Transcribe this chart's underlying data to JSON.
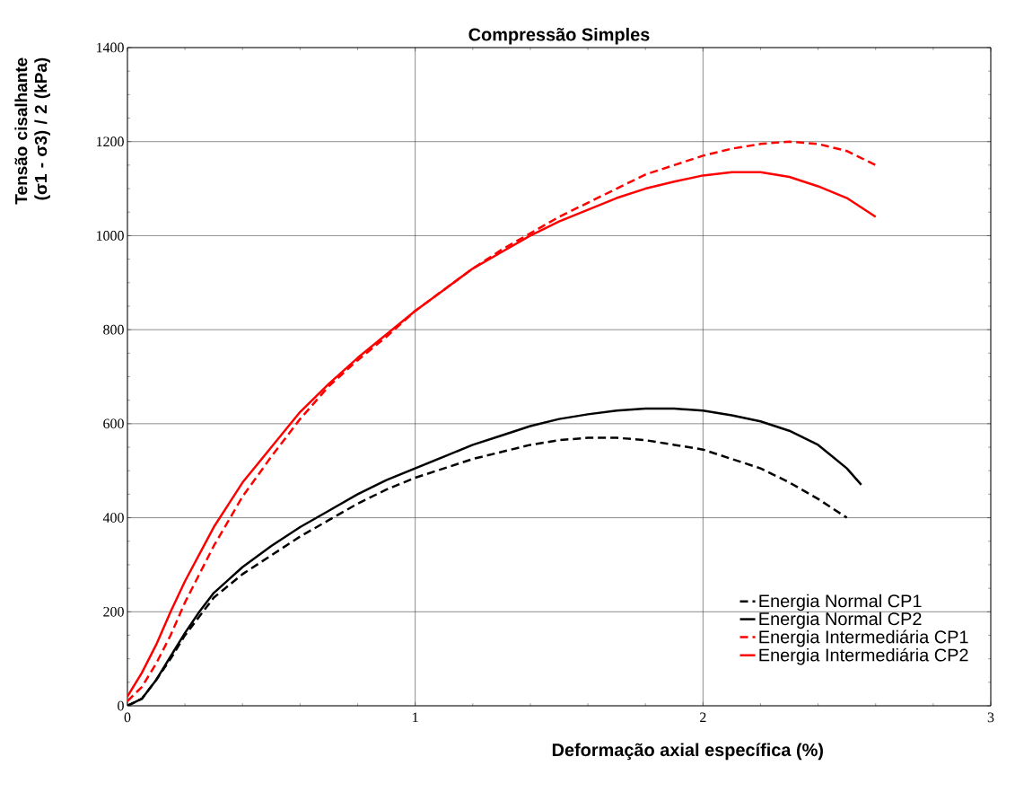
{
  "chart_data": {
    "type": "line",
    "title": "Compressão Simples",
    "xlabel": "Deformação axial específica (%)",
    "ylabel": "Tensão cisalhante (σ1 - σ3) / 2  (kPa)",
    "series": [
      {
        "name": "Energia Normal CP1",
        "color": "#000000",
        "line_style": "dashed",
        "x": [
          0,
          0.05,
          0.1,
          0.15,
          0.2,
          0.25,
          0.3,
          0.4,
          0.5,
          0.6,
          0.7,
          0.8,
          0.9,
          1.0,
          1.1,
          1.2,
          1.3,
          1.4,
          1.5,
          1.6,
          1.7,
          1.8,
          1.9,
          2.0,
          2.1,
          2.2,
          2.3,
          2.4,
          2.5
        ],
        "values": [
          0,
          15,
          55,
          100,
          150,
          190,
          230,
          280,
          320,
          360,
          395,
          430,
          460,
          485,
          505,
          525,
          540,
          555,
          565,
          570,
          570,
          565,
          555,
          545,
          525,
          505,
          475,
          440,
          400
        ]
      },
      {
        "name": "Energia Normal CP2",
        "color": "#000000",
        "line_style": "solid",
        "x": [
          0,
          0.05,
          0.1,
          0.15,
          0.2,
          0.25,
          0.3,
          0.4,
          0.5,
          0.6,
          0.7,
          0.8,
          0.9,
          1.0,
          1.1,
          1.2,
          1.3,
          1.4,
          1.5,
          1.6,
          1.7,
          1.8,
          1.9,
          2.0,
          2.1,
          2.2,
          2.3,
          2.4,
          2.5,
          2.55
        ],
        "values": [
          0,
          15,
          55,
          105,
          155,
          200,
          240,
          295,
          340,
          380,
          415,
          450,
          480,
          505,
          530,
          555,
          575,
          595,
          610,
          620,
          628,
          632,
          632,
          628,
          618,
          605,
          585,
          555,
          505,
          470
        ]
      },
      {
        "name": "Energia Intermediária CP1",
        "color": "#ff0000",
        "line_style": "dashed",
        "x": [
          0,
          0.05,
          0.1,
          0.15,
          0.2,
          0.3,
          0.4,
          0.5,
          0.6,
          0.7,
          0.8,
          0.9,
          1.0,
          1.1,
          1.2,
          1.3,
          1.4,
          1.5,
          1.6,
          1.7,
          1.8,
          1.9,
          2.0,
          2.1,
          2.2,
          2.3,
          2.4,
          2.5,
          2.6
        ],
        "values": [
          10,
          40,
          90,
          150,
          220,
          340,
          445,
          530,
          610,
          680,
          735,
          785,
          840,
          885,
          930,
          970,
          1005,
          1040,
          1070,
          1100,
          1130,
          1150,
          1170,
          1185,
          1195,
          1200,
          1195,
          1180,
          1150
        ]
      },
      {
        "name": "Energia Intermediária CP2",
        "color": "#ff0000",
        "line_style": "solid",
        "x": [
          0,
          0.05,
          0.1,
          0.15,
          0.2,
          0.3,
          0.4,
          0.5,
          0.6,
          0.7,
          0.8,
          0.9,
          1.0,
          1.1,
          1.2,
          1.3,
          1.4,
          1.5,
          1.6,
          1.7,
          1.8,
          1.9,
          2.0,
          2.1,
          2.2,
          2.3,
          2.4,
          2.5,
          2.6
        ],
        "values": [
          20,
          70,
          130,
          200,
          265,
          380,
          475,
          550,
          625,
          685,
          740,
          790,
          840,
          885,
          930,
          965,
          1000,
          1030,
          1055,
          1080,
          1100,
          1115,
          1128,
          1135,
          1135,
          1125,
          1105,
          1080,
          1040
        ]
      }
    ],
    "xlim": [
      0,
      3
    ],
    "xticks": [
      0,
      1,
      2,
      3
    ],
    "ylim": [
      0,
      1400
    ],
    "yticks": [
      0,
      200,
      400,
      600,
      800,
      1000,
      1200,
      1400
    ],
    "grid": true,
    "legend": "bottom right",
    "marker": "none"
  }
}
